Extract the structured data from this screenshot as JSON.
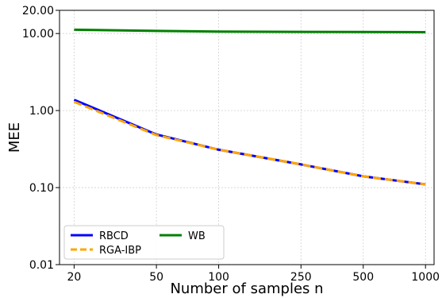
{
  "chart_data": {
    "type": "line",
    "title": "",
    "xlabel": "Number of samples n",
    "ylabel": "MEE",
    "x": [
      20,
      50,
      100,
      250,
      500,
      1000
    ],
    "x_scale": "log",
    "y_scale": "log",
    "xlim": [
      17,
      1100
    ],
    "ylim": [
      0.01,
      20
    ],
    "x_ticks": [
      20,
      50,
      100,
      250,
      500,
      1000
    ],
    "x_tick_labels": [
      "20",
      "50",
      "100",
      "250",
      "500",
      "1000"
    ],
    "y_ticks": [
      0.01,
      0.1,
      1,
      10,
      20
    ],
    "y_tick_labels": [
      "0.01",
      "0.10",
      "1.00",
      "10.00",
      "20.00"
    ],
    "grid": true,
    "legend_position": "lower-left",
    "series": [
      {
        "name": "RBCD",
        "values": [
          1.38,
          0.49,
          0.31,
          0.2,
          0.14,
          0.11
        ],
        "color": "#0000ff",
        "dash": "solid"
      },
      {
        "name": "RGA-IBP",
        "values": [
          1.3,
          0.48,
          0.31,
          0.2,
          0.14,
          0.11
        ],
        "color": "#ffa500",
        "dash": "dashed"
      },
      {
        "name": "WB",
        "values": [
          11.2,
          10.8,
          10.6,
          10.5,
          10.45,
          10.4
        ],
        "color": "#008000",
        "dash": "solid"
      }
    ]
  }
}
